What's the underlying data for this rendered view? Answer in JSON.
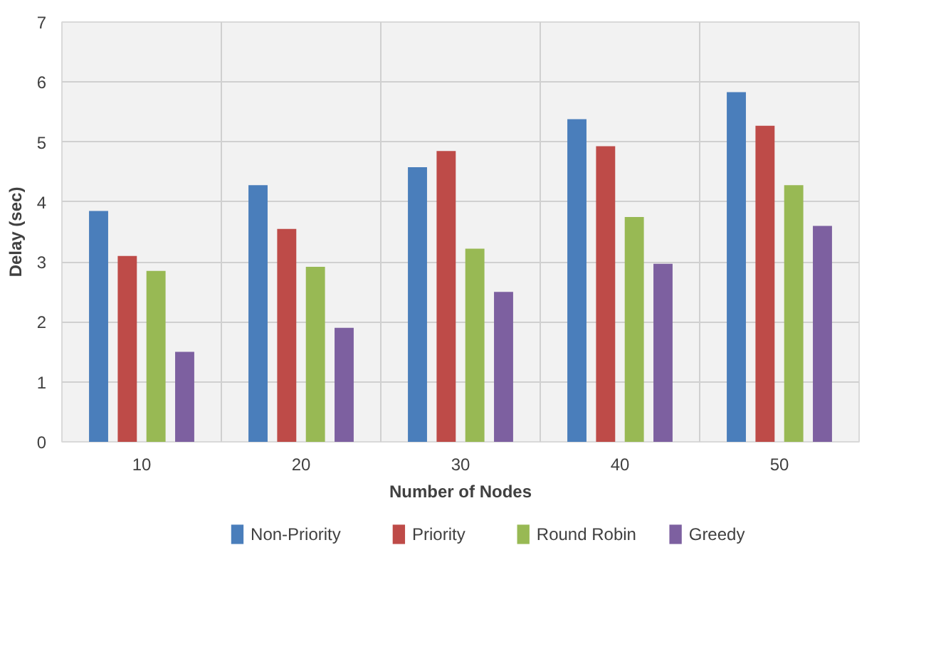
{
  "chart_data": {
    "type": "bar",
    "xlabel": "Number of Nodes",
    "ylabel": "Delay (sec)",
    "categories": [
      "10",
      "20",
      "30",
      "40",
      "50"
    ],
    "series": [
      {
        "name": "Non-Priority",
        "color": "#4a7ebb",
        "values": [
          3.85,
          4.28,
          4.58,
          5.38,
          5.83
        ]
      },
      {
        "name": "Priority",
        "color": "#be4b48",
        "values": [
          3.1,
          3.55,
          4.85,
          4.93,
          5.27
        ]
      },
      {
        "name": "Round Robin",
        "color": "#98b954",
        "values": [
          2.85,
          2.92,
          3.22,
          3.75,
          4.28
        ]
      },
      {
        "name": "Greedy",
        "color": "#7d60a0",
        "values": [
          1.5,
          1.9,
          2.5,
          2.97,
          3.6
        ]
      }
    ],
    "ylim": [
      0,
      7
    ],
    "yticks": [
      0,
      1,
      2,
      3,
      4,
      5,
      6,
      7
    ],
    "grid": true,
    "legend": "bottom"
  }
}
